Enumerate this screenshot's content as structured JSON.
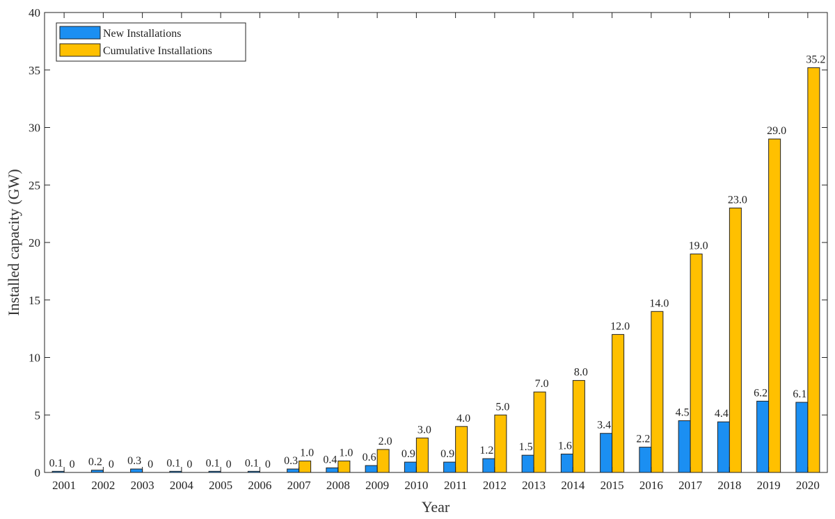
{
  "chart_data": {
    "type": "bar",
    "xlabel": "Year",
    "ylabel": "Installed capacity (GW)",
    "ylim": [
      0,
      40
    ],
    "yticks": [
      0,
      5,
      10,
      15,
      20,
      25,
      30,
      35,
      40
    ],
    "categories": [
      "2001",
      "2002",
      "2003",
      "2004",
      "2005",
      "2006",
      "2007",
      "2008",
      "2009",
      "2010",
      "2011",
      "2012",
      "2013",
      "2014",
      "2015",
      "2016",
      "2017",
      "2018",
      "2019",
      "2020"
    ],
    "series": [
      {
        "name": "New Installations",
        "color": "#1b8ff2",
        "values": [
          0.1,
          0.2,
          0.3,
          0.1,
          0.1,
          0.1,
          0.3,
          0.4,
          0.6,
          0.9,
          0.9,
          1.2,
          1.5,
          1.6,
          3.4,
          2.2,
          4.5,
          4.4,
          6.2,
          6.1
        ],
        "labels": [
          "0.1",
          "0.2",
          "0.3",
          "0.1",
          "0.1",
          "0.1",
          "0.3",
          "0.4",
          "0.6",
          "0.9",
          "0.9",
          "1.2",
          "1.5",
          "1.6",
          "3.4",
          "2.2",
          "4.5",
          "4.4",
          "6.2",
          "6.1"
        ]
      },
      {
        "name": "Cumulative Installations",
        "color": "#ffc000",
        "values": [
          0.0,
          0.0,
          0.0,
          0.0,
          0.0,
          0.0,
          1.0,
          1.0,
          2.0,
          3.0,
          4.0,
          5.0,
          7.0,
          8.0,
          12.0,
          14.0,
          19.0,
          23.0,
          29.0,
          35.2
        ],
        "labels": [
          "0",
          "0",
          "0",
          "0",
          "0",
          "0",
          "1.0",
          "1.0",
          "2.0",
          "3.0",
          "4.0",
          "5.0",
          "7.0",
          "8.0",
          "12.0",
          "14.0",
          "19.0",
          "23.0",
          "29.0",
          "35.2"
        ]
      }
    ],
    "grid": false,
    "legend_position": "top-left"
  }
}
